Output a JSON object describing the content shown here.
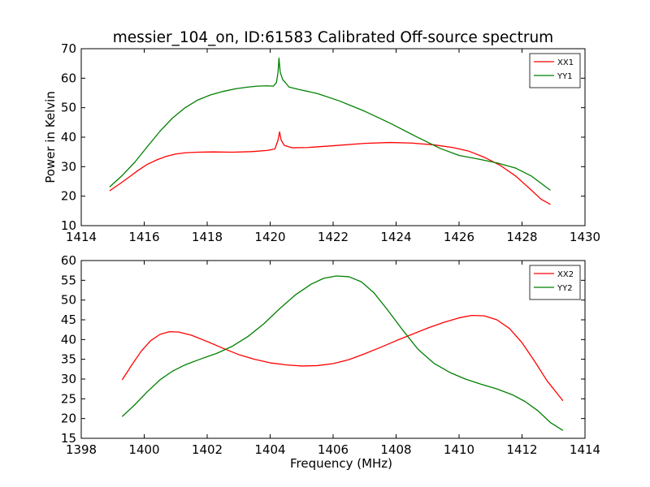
{
  "title": "messier_104_on, ID:61583 Calibrated Off-source spectrum",
  "chart_data": [
    {
      "type": "line",
      "xlabel": "",
      "ylabel": "Power in Kelvin",
      "xlim": [
        1414,
        1430
      ],
      "ylim": [
        10,
        70
      ],
      "xticks": [
        "1414",
        "1416",
        "1418",
        "1420",
        "1422",
        "1424",
        "1426",
        "1428",
        "1430"
      ],
      "yticks": [
        "10",
        "20",
        "30",
        "40",
        "50",
        "60",
        "70"
      ],
      "grid": false,
      "legend": "top-right",
      "series": [
        {
          "name": "XX1",
          "color": "#ff0000",
          "points": [
            [
              1414.9,
              21.8
            ],
            [
              1415.2,
              24.0
            ],
            [
              1415.5,
              26.3
            ],
            [
              1415.8,
              28.7
            ],
            [
              1416.1,
              30.8
            ],
            [
              1416.4,
              32.3
            ],
            [
              1416.7,
              33.5
            ],
            [
              1417.0,
              34.3
            ],
            [
              1417.3,
              34.7
            ],
            [
              1417.7,
              34.9
            ],
            [
              1418.2,
              35.0
            ],
            [
              1418.8,
              34.9
            ],
            [
              1419.4,
              35.1
            ],
            [
              1419.9,
              35.5
            ],
            [
              1420.15,
              36.0
            ],
            [
              1420.25,
              39.0
            ],
            [
              1420.3,
              41.8
            ],
            [
              1420.35,
              39.0
            ],
            [
              1420.45,
              37.2
            ],
            [
              1420.7,
              36.4
            ],
            [
              1421.2,
              36.5
            ],
            [
              1422.0,
              37.1
            ],
            [
              1423.0,
              37.9
            ],
            [
              1423.8,
              38.2
            ],
            [
              1424.5,
              38.0
            ],
            [
              1425.2,
              37.4
            ],
            [
              1425.8,
              36.5
            ],
            [
              1426.3,
              35.3
            ],
            [
              1426.8,
              33.2
            ],
            [
              1427.3,
              30.5
            ],
            [
              1427.8,
              26.8
            ],
            [
              1428.3,
              22.0
            ],
            [
              1428.6,
              19.0
            ],
            [
              1428.9,
              17.2
            ]
          ]
        },
        {
          "name": "YY1",
          "color": "#008000",
          "points": [
            [
              1414.9,
              23.1
            ],
            [
              1415.3,
              27.0
            ],
            [
              1415.7,
              31.5
            ],
            [
              1416.1,
              36.8
            ],
            [
              1416.5,
              42.0
            ],
            [
              1416.9,
              46.5
            ],
            [
              1417.3,
              50.0
            ],
            [
              1417.7,
              52.6
            ],
            [
              1418.1,
              54.3
            ],
            [
              1418.5,
              55.5
            ],
            [
              1418.9,
              56.4
            ],
            [
              1419.3,
              57.0
            ],
            [
              1419.6,
              57.3
            ],
            [
              1419.9,
              57.4
            ],
            [
              1420.1,
              57.3
            ],
            [
              1420.2,
              58.5
            ],
            [
              1420.25,
              62.0
            ],
            [
              1420.28,
              66.8
            ],
            [
              1420.32,
              62.0
            ],
            [
              1420.4,
              59.5
            ],
            [
              1420.5,
              58.3
            ],
            [
              1420.6,
              57.0
            ],
            [
              1420.9,
              56.2
            ],
            [
              1421.5,
              54.8
            ],
            [
              1422.2,
              52.3
            ],
            [
              1423.0,
              48.8
            ],
            [
              1423.8,
              44.8
            ],
            [
              1424.6,
              40.4
            ],
            [
              1425.4,
              36.2
            ],
            [
              1426.0,
              33.8
            ],
            [
              1426.6,
              32.6
            ],
            [
              1427.2,
              31.3
            ],
            [
              1427.8,
              29.5
            ],
            [
              1428.3,
              26.8
            ],
            [
              1428.9,
              22.0
            ]
          ]
        }
      ]
    },
    {
      "type": "line",
      "xlabel": "Frequency (MHz)",
      "ylabel": "",
      "xlim": [
        1398,
        1414
      ],
      "ylim": [
        15,
        60
      ],
      "xticks": [
        "1398",
        "1400",
        "1402",
        "1404",
        "1406",
        "1408",
        "1410",
        "1412",
        "1414"
      ],
      "yticks": [
        "15",
        "20",
        "25",
        "30",
        "35",
        "40",
        "45",
        "50",
        "55",
        "60"
      ],
      "grid": false,
      "legend": "top-right",
      "series": [
        {
          "name": "XX2",
          "color": "#ff0000",
          "points": [
            [
              1399.3,
              29.8
            ],
            [
              1399.6,
              33.5
            ],
            [
              1399.9,
              37.0
            ],
            [
              1400.2,
              39.7
            ],
            [
              1400.5,
              41.3
            ],
            [
              1400.8,
              42.0
            ],
            [
              1401.1,
              41.9
            ],
            [
              1401.5,
              41.1
            ],
            [
              1402.0,
              39.5
            ],
            [
              1402.5,
              37.8
            ],
            [
              1403.0,
              36.2
            ],
            [
              1403.5,
              35.0
            ],
            [
              1404.0,
              34.1
            ],
            [
              1404.5,
              33.6
            ],
            [
              1405.0,
              33.3
            ],
            [
              1405.5,
              33.4
            ],
            [
              1406.0,
              33.9
            ],
            [
              1406.5,
              34.9
            ],
            [
              1407.0,
              36.4
            ],
            [
              1407.5,
              38.0
            ],
            [
              1408.0,
              39.7
            ],
            [
              1408.5,
              41.3
            ],
            [
              1409.0,
              42.9
            ],
            [
              1409.5,
              44.3
            ],
            [
              1410.0,
              45.5
            ],
            [
              1410.4,
              46.1
            ],
            [
              1410.8,
              46.0
            ],
            [
              1411.2,
              45.0
            ],
            [
              1411.6,
              42.8
            ],
            [
              1412.0,
              39.2
            ],
            [
              1412.4,
              34.5
            ],
            [
              1412.8,
              29.5
            ],
            [
              1413.3,
              24.5
            ]
          ]
        },
        {
          "name": "YY2",
          "color": "#008000",
          "points": [
            [
              1399.3,
              20.5
            ],
            [
              1399.7,
              23.5
            ],
            [
              1400.1,
              26.8
            ],
            [
              1400.5,
              29.8
            ],
            [
              1400.9,
              32.0
            ],
            [
              1401.3,
              33.6
            ],
            [
              1401.8,
              35.1
            ],
            [
              1402.3,
              36.5
            ],
            [
              1402.8,
              38.3
            ],
            [
              1403.3,
              40.8
            ],
            [
              1403.8,
              44.0
            ],
            [
              1404.3,
              47.8
            ],
            [
              1404.8,
              51.3
            ],
            [
              1405.3,
              54.0
            ],
            [
              1405.7,
              55.5
            ],
            [
              1406.1,
              56.1
            ],
            [
              1406.5,
              55.9
            ],
            [
              1406.9,
              54.6
            ],
            [
              1407.3,
              51.8
            ],
            [
              1407.7,
              47.8
            ],
            [
              1408.2,
              42.5
            ],
            [
              1408.7,
              37.5
            ],
            [
              1409.2,
              34.0
            ],
            [
              1409.7,
              31.7
            ],
            [
              1410.2,
              30.0
            ],
            [
              1410.7,
              28.7
            ],
            [
              1411.2,
              27.5
            ],
            [
              1411.7,
              26.0
            ],
            [
              1412.1,
              24.3
            ],
            [
              1412.5,
              22.0
            ],
            [
              1412.9,
              19.0
            ],
            [
              1413.3,
              17.0
            ]
          ]
        }
      ]
    }
  ]
}
